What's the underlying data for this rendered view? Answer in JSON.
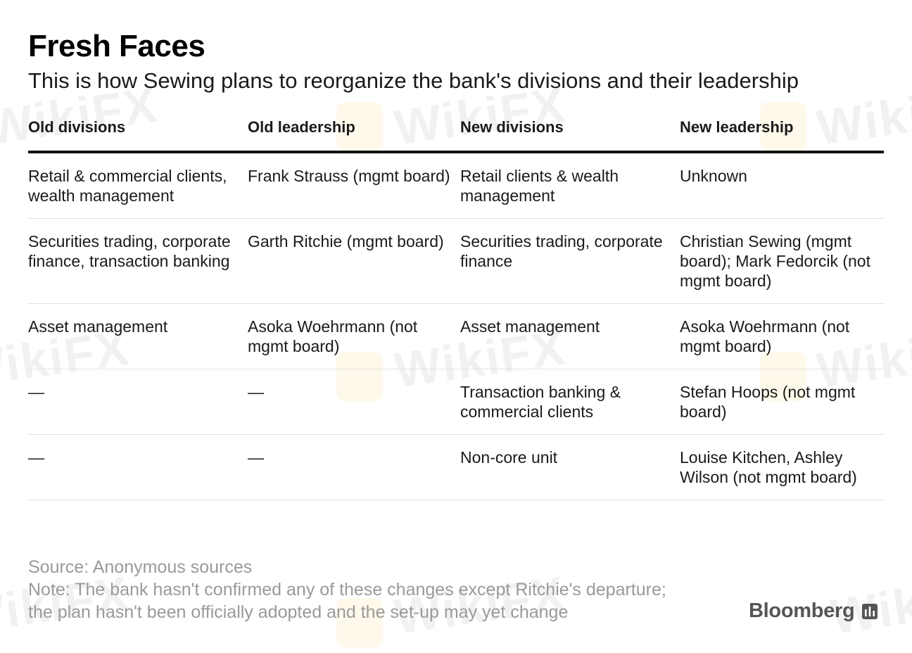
{
  "header": {
    "title": "Fresh Faces",
    "subtitle": "This is how Sewing plans to reorganize the bank's divisions and their leadership"
  },
  "table": {
    "columns": [
      "Old divisions",
      "Old leadership",
      "New divisions",
      "New leadership"
    ],
    "rows": [
      [
        "Retail & commercial clients, wealth management",
        "Frank Strauss (mgmt board)",
        "Retail clients & wealth management",
        "Unknown"
      ],
      [
        "Securities trading, corporate finance, transaction banking",
        "Garth Ritchie (mgmt board)",
        "Securities trading, corporate finance",
        "Christian Sewing (mgmt board); Mark Fedorcik (not mgmt board)"
      ],
      [
        "Asset management",
        "Asoka Woehrmann (not mgmt board)",
        "Asset management",
        "Asoka Woehrmann (not mgmt board)"
      ],
      [
        "—",
        "—",
        "Transaction banking & commercial clients",
        "Stefan Hoops (not mgmt board)"
      ],
      [
        "—",
        "—",
        "Non-core unit",
        "Louise Kitchen, Ashley Wilson (not mgmt board)"
      ]
    ]
  },
  "footer": {
    "source": "Source: Anonymous sources",
    "note_line1": "Note: The bank hasn't confirmed any of these changes except Ritchie's departure;",
    "note_line2": "the plan hasn't been officially adopted and the set-up may yet change"
  },
  "brand": {
    "name": "Bloomberg",
    "icon": "bloomberg-chart-icon"
  },
  "watermark": {
    "text": "WikiFX"
  }
}
